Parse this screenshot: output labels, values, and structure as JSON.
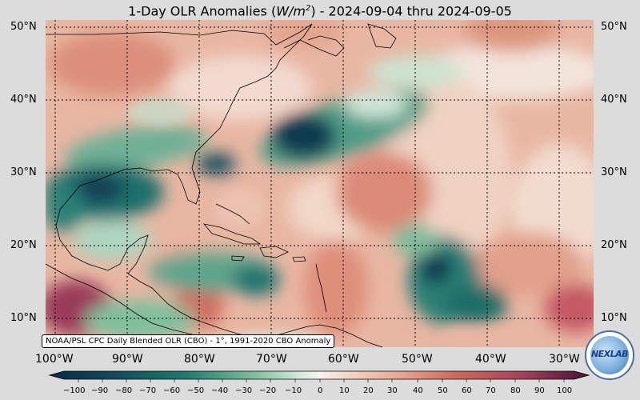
{
  "title": {
    "prefix": "1-Day OLR Anomalies (",
    "units": "W/m",
    "units_exp": "2",
    "suffix": ") - 2024-09-04 thru 2024-09-05"
  },
  "map": {
    "region": "Atlantic Ocean / Caribbean / eastern North America",
    "lat_labels": [
      "50°N",
      "40°N",
      "30°N",
      "20°N",
      "10°N"
    ],
    "lon_labels": [
      "100°W",
      "90°W",
      "80°W",
      "70°W",
      "60°W",
      "50°W",
      "40°W",
      "30°W"
    ],
    "gridlines": "dotted"
  },
  "credit": "NOAA/PSL CPC Daily Blended OLR (CBO) - 1°, 1991-2020 CBO Anomaly",
  "logo_text": "NEXLAB",
  "colorbar": {
    "ticks": [
      "−100",
      "−90",
      "−80",
      "−70",
      "−60",
      "−50",
      "−40",
      "−30",
      "−20",
      "−10",
      "0",
      "10",
      "20",
      "30",
      "40",
      "50",
      "60",
      "70",
      "80",
      "90",
      "100"
    ],
    "colors": {
      "strong_negative": "#0b2a45",
      "negative": "#1d7a6e",
      "weak_negative": "#a9d3bc",
      "neutral": "#f7efe8",
      "weak_positive": "#eec0aa",
      "positive": "#cf6a58",
      "strong_positive": "#6e1a4a"
    }
  }
}
